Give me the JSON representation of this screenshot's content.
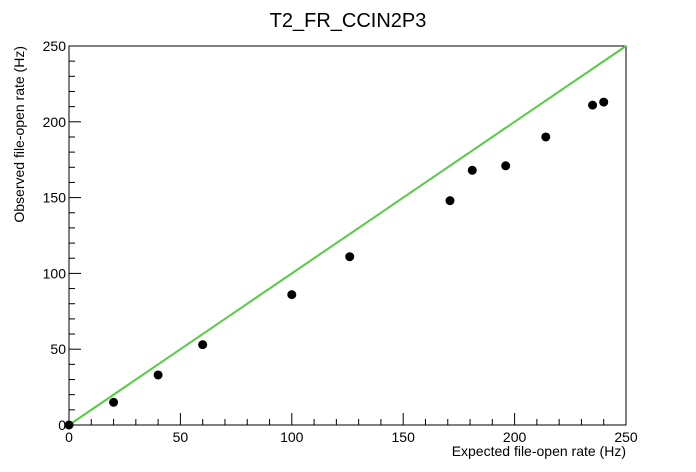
{
  "chart_data": {
    "type": "scatter",
    "title": "T2_FR_CCIN2P3",
    "xlabel": "Expected file-open rate (Hz)",
    "ylabel": "Observed file-open rate (Hz)",
    "xlim": [
      0,
      250
    ],
    "ylim": [
      0,
      250
    ],
    "x_major_ticks": [
      0,
      50,
      100,
      150,
      200,
      250
    ],
    "y_major_ticks": [
      0,
      50,
      100,
      150,
      200,
      250
    ],
    "grid": false,
    "series": [
      {
        "kind": "points",
        "color": "#000000",
        "points": [
          {
            "x": 0,
            "y": 0
          },
          {
            "x": 20,
            "y": 15
          },
          {
            "x": 40,
            "y": 33
          },
          {
            "x": 60,
            "y": 53
          },
          {
            "x": 100,
            "y": 86
          },
          {
            "x": 126,
            "y": 111
          },
          {
            "x": 171,
            "y": 148
          },
          {
            "x": 181,
            "y": 168
          },
          {
            "x": 196,
            "y": 171
          },
          {
            "x": 214,
            "y": 190
          },
          {
            "x": 235,
            "y": 211
          },
          {
            "x": 240,
            "y": 213
          }
        ]
      },
      {
        "kind": "line",
        "color": "#55cc44",
        "from": {
          "x": 0,
          "y": 0
        },
        "to": {
          "x": 250,
          "y": 250
        }
      }
    ]
  }
}
